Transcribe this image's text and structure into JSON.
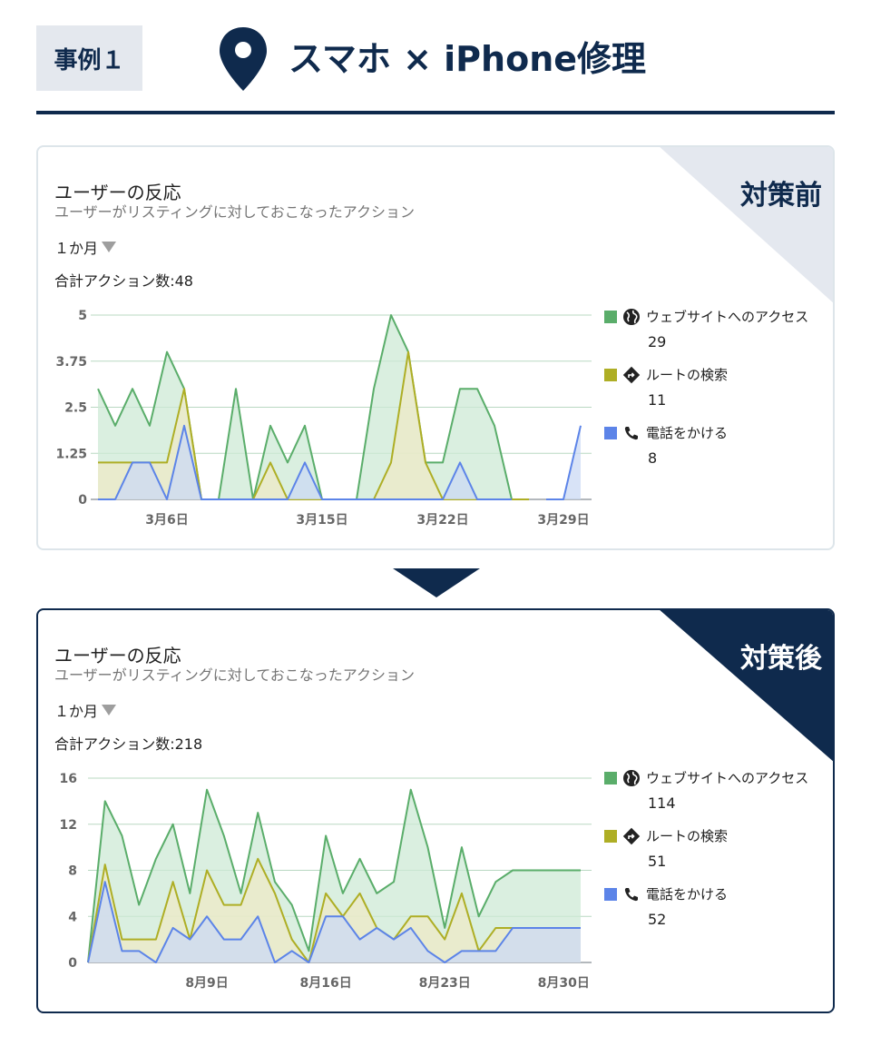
{
  "header": {
    "case_label": "事例１",
    "title": "スマホ × iPhone修理"
  },
  "colors": {
    "navy": "#0f2a4d",
    "web": "#5aad6a",
    "route": "#aeae25",
    "call": "#5c84e8"
  },
  "cards": [
    {
      "badge": "対策前",
      "title": "ユーザーの反応",
      "subtitle": "ユーザーがリスティングに対しておこなったアクション",
      "period": "１か月",
      "total": "合計アクション数:48",
      "legend": [
        {
          "icon": "globe-icon",
          "label": "ウェブサイトへのアクセス",
          "value": "29"
        },
        {
          "icon": "directions-icon",
          "label": "ルートの検索",
          "value": "11"
        },
        {
          "icon": "phone-icon",
          "label": "電話をかける",
          "value": "8"
        }
      ]
    },
    {
      "badge": "対策後",
      "title": "ユーザーの反応",
      "subtitle": "ユーザーがリスティングに対しておこなったアクション",
      "period": "１か月",
      "total": "合計アクション数:218",
      "legend": [
        {
          "icon": "globe-icon",
          "label": "ウェブサイトへのアクセス",
          "value": "114"
        },
        {
          "icon": "directions-icon",
          "label": "ルートの検索",
          "value": "51"
        },
        {
          "icon": "phone-icon",
          "label": "電話をかける",
          "value": "52"
        }
      ]
    }
  ],
  "chart_data": [
    {
      "type": "area",
      "stacked": false,
      "x": [
        "3月2日",
        "3月3日",
        "3月4日",
        "3月5日",
        "3月6日",
        "3月7日",
        "3月8日",
        "3月9日",
        "3月10日",
        "3月11日",
        "3月12日",
        "3月13日",
        "3月14日",
        "3月15日",
        "3月16日",
        "3月17日",
        "3月18日",
        "3月19日",
        "3月20日",
        "3月21日",
        "3月22日",
        "3月23日",
        "3月24日",
        "3月25日",
        "3月26日",
        "3月27日",
        "3月28日",
        "3月29日",
        "3月30日"
      ],
      "xticks": [
        "3月6日",
        "3月15日",
        "3月22日",
        "3月29日"
      ],
      "yticks": [
        "0",
        "1.25",
        "2.5",
        "3.75",
        "5"
      ],
      "ylim": [
        0,
        5
      ],
      "grid": true,
      "legend_position": "right",
      "series": [
        {
          "name": "ウェブサイトへのアクセス",
          "color": "#5aad6a",
          "fill": "#cde9d5",
          "values": [
            3,
            2,
            3,
            2,
            4,
            3,
            0,
            0,
            3,
            0,
            2,
            1,
            2,
            0,
            0,
            0,
            3,
            5,
            4,
            1,
            1,
            3,
            3,
            2,
            0,
            0,
            null,
            null,
            null
          ]
        },
        {
          "name": "ルートの検索",
          "color": "#aeae25",
          "fill": "#eeeac7",
          "values": [
            1,
            1,
            1,
            1,
            1,
            3,
            0,
            0,
            0,
            0,
            1,
            0,
            0,
            0,
            0,
            0,
            0,
            1,
            4,
            1,
            0,
            0,
            0,
            0,
            0,
            0,
            null,
            null,
            null
          ]
        },
        {
          "name": "電話をかける",
          "color": "#5c84e8",
          "fill": "#cbd9f4",
          "values": [
            0,
            0,
            1,
            1,
            0,
            2,
            0,
            0,
            0,
            0,
            0,
            0,
            1,
            0,
            0,
            0,
            0,
            0,
            0,
            0,
            0,
            1,
            0,
            0,
            0,
            null,
            0,
            0,
            2
          ]
        }
      ]
    },
    {
      "type": "area",
      "stacked": false,
      "x": [
        "8月2日",
        "8月3日",
        "8月4日",
        "8月5日",
        "8月6日",
        "8月7日",
        "8月8日",
        "8月9日",
        "8月10日",
        "8月11日",
        "8月12日",
        "8月13日",
        "8月14日",
        "8月15日",
        "8月16日",
        "8月17日",
        "8月18日",
        "8月19日",
        "8月20日",
        "8月21日",
        "8月22日",
        "8月23日",
        "8月24日",
        "8月25日",
        "8月26日",
        "8月27日",
        "8月28日",
        "8月29日",
        "8月30日",
        "8月31日"
      ],
      "xticks": [
        "8月9日",
        "8月16日",
        "8月23日",
        "8月30日"
      ],
      "yticks": [
        "0",
        "4",
        "8",
        "12",
        "16"
      ],
      "ylim": [
        0,
        16
      ],
      "grid": true,
      "legend_position": "right",
      "series": [
        {
          "name": "ウェブサイトへのアクセス",
          "color": "#5aad6a",
          "fill": "#cde9d5",
          "values": [
            0,
            14,
            11,
            5,
            9,
            12,
            6,
            15,
            11,
            6,
            13,
            7,
            5,
            1,
            11,
            6,
            9,
            6,
            7,
            15,
            10,
            3,
            10,
            4,
            7,
            8,
            8,
            8,
            8,
            8
          ]
        },
        {
          "name": "ルートの検索",
          "color": "#aeae25",
          "fill": "#eeeac7",
          "values": [
            0,
            8.5,
            2,
            2,
            2,
            7,
            2,
            8,
            5,
            5,
            9,
            6,
            2,
            0,
            6,
            4,
            6,
            3,
            2,
            4,
            4,
            2,
            6,
            1,
            3,
            3,
            3,
            3,
            3,
            3
          ]
        },
        {
          "name": "電話をかける",
          "color": "#5c84e8",
          "fill": "#cbd9f4",
          "values": [
            0,
            7,
            1,
            1,
            0,
            3,
            2,
            4,
            2,
            2,
            4,
            0,
            1,
            0,
            4,
            4,
            2,
            3,
            2,
            3,
            1,
            0,
            1,
            1,
            1,
            3,
            3,
            3,
            3,
            3
          ]
        }
      ]
    }
  ]
}
